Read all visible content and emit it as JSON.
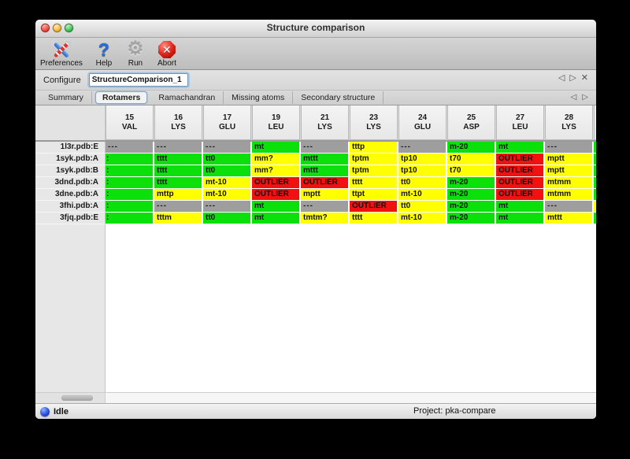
{
  "window": {
    "title": "Structure comparison"
  },
  "traffic_lights": [
    "close",
    "minimize",
    "zoom"
  ],
  "toolbar": {
    "buttons": [
      {
        "label": "Preferences",
        "icon": "tools-icon"
      },
      {
        "label": "Help",
        "icon": "question-icon"
      },
      {
        "label": "Run",
        "icon": "gear-icon"
      },
      {
        "label": "Abort",
        "icon": "stop-icon"
      }
    ]
  },
  "configure": {
    "label": "Configure",
    "value": "StructureComparison_1"
  },
  "pager": {
    "back": "◁",
    "forward": "▷",
    "close": "✕"
  },
  "tabs": [
    {
      "label": "Summary",
      "selected": false
    },
    {
      "label": "Rotamers",
      "selected": true
    },
    {
      "label": "Ramachandran",
      "selected": false
    },
    {
      "label": "Missing atoms",
      "selected": false
    },
    {
      "label": "Secondary structure",
      "selected": false
    }
  ],
  "colors": {
    "g": "#0be00b",
    "y": "#ffff00",
    "r": "#f21111",
    "x": "#9e9e9e"
  },
  "table": {
    "columns": [
      {
        "num": "15",
        "res": "VAL"
      },
      {
        "num": "16",
        "res": "LYS"
      },
      {
        "num": "17",
        "res": "GLU"
      },
      {
        "num": "19",
        "res": "LEU"
      },
      {
        "num": "21",
        "res": "LYS"
      },
      {
        "num": "23",
        "res": "LYS"
      },
      {
        "num": "24",
        "res": "GLU"
      },
      {
        "num": "25",
        "res": "ASP"
      },
      {
        "num": "27",
        "res": "LEU"
      },
      {
        "num": "28",
        "res": "LYS"
      }
    ],
    "rows": [
      {
        "label": "1l3r.pdb:E",
        "cells": [
          {
            "t": "---",
            "c": "x"
          },
          {
            "t": "---",
            "c": "x"
          },
          {
            "t": "---",
            "c": "x"
          },
          {
            "t": "mt",
            "c": "g"
          },
          {
            "t": "---",
            "c": "x"
          },
          {
            "t": "tttp",
            "c": "y"
          },
          {
            "t": "---",
            "c": "x"
          },
          {
            "t": "m-20",
            "c": "g"
          },
          {
            "t": "mt",
            "c": "g"
          },
          {
            "t": "---",
            "c": "x"
          }
        ],
        "extra": "g"
      },
      {
        "label": "1syk.pdb:A",
        "cells": [
          {
            "t": ":",
            "c": "g"
          },
          {
            "t": "tttt",
            "c": "g"
          },
          {
            "t": "tt0",
            "c": "g"
          },
          {
            "t": "mm?",
            "c": "y"
          },
          {
            "t": "mttt",
            "c": "g"
          },
          {
            "t": "tptm",
            "c": "y"
          },
          {
            "t": "tp10",
            "c": "y"
          },
          {
            "t": "t70",
            "c": "y"
          },
          {
            "t": "OUTLIER",
            "c": "r"
          },
          {
            "t": "mptt",
            "c": "y"
          }
        ],
        "extra": "g"
      },
      {
        "label": "1syk.pdb:B",
        "cells": [
          {
            "t": ":",
            "c": "g"
          },
          {
            "t": "tttt",
            "c": "g"
          },
          {
            "t": "tt0",
            "c": "g"
          },
          {
            "t": "mm?",
            "c": "y"
          },
          {
            "t": "mttt",
            "c": "g"
          },
          {
            "t": "tptm",
            "c": "y"
          },
          {
            "t": "tp10",
            "c": "y"
          },
          {
            "t": "t70",
            "c": "y"
          },
          {
            "t": "OUTLIER",
            "c": "r"
          },
          {
            "t": "mptt",
            "c": "y"
          }
        ],
        "extra": "g"
      },
      {
        "label": "3dnd.pdb:A",
        "cells": [
          {
            "t": ":",
            "c": "g"
          },
          {
            "t": "tttt",
            "c": "g"
          },
          {
            "t": "mt-10",
            "c": "y"
          },
          {
            "t": "OUTLIER",
            "c": "r"
          },
          {
            "t": "OUTLIER",
            "c": "r"
          },
          {
            "t": "tttt",
            "c": "y"
          },
          {
            "t": "tt0",
            "c": "y"
          },
          {
            "t": "m-20",
            "c": "g"
          },
          {
            "t": "OUTLIER",
            "c": "r"
          },
          {
            "t": "mtmm",
            "c": "y"
          }
        ],
        "extra": "g"
      },
      {
        "label": "3dne.pdb:A",
        "cells": [
          {
            "t": ":",
            "c": "g"
          },
          {
            "t": "mttp",
            "c": "y"
          },
          {
            "t": "mt-10",
            "c": "y"
          },
          {
            "t": "OUTLIER",
            "c": "r"
          },
          {
            "t": "mptt",
            "c": "y"
          },
          {
            "t": "ttpt",
            "c": "y"
          },
          {
            "t": "mt-10",
            "c": "y"
          },
          {
            "t": "m-20",
            "c": "g"
          },
          {
            "t": "OUTLIER",
            "c": "r"
          },
          {
            "t": "mtmm",
            "c": "y"
          }
        ],
        "extra": "g"
      },
      {
        "label": "3fhi.pdb:A",
        "cells": [
          {
            "t": ":",
            "c": "g"
          },
          {
            "t": "---",
            "c": "x"
          },
          {
            "t": "---",
            "c": "x"
          },
          {
            "t": "mt",
            "c": "g"
          },
          {
            "t": "---",
            "c": "x"
          },
          {
            "t": "OUTLIER",
            "c": "r"
          },
          {
            "t": "tt0",
            "c": "y"
          },
          {
            "t": "m-20",
            "c": "g"
          },
          {
            "t": "mt",
            "c": "g"
          },
          {
            "t": "---",
            "c": "x"
          }
        ],
        "extra": "y"
      },
      {
        "label": "3fjq.pdb:E",
        "cells": [
          {
            "t": ":",
            "c": "g"
          },
          {
            "t": "tttm",
            "c": "y"
          },
          {
            "t": "tt0",
            "c": "g"
          },
          {
            "t": "mt",
            "c": "g"
          },
          {
            "t": "tmtm?",
            "c": "y"
          },
          {
            "t": "tttt",
            "c": "y"
          },
          {
            "t": "mt-10",
            "c": "y"
          },
          {
            "t": "m-20",
            "c": "g"
          },
          {
            "t": "mt",
            "c": "g"
          },
          {
            "t": "mttt",
            "c": "y"
          }
        ],
        "extra": "g"
      }
    ]
  },
  "status": {
    "state": "Idle",
    "project": "Project: pka-compare"
  }
}
